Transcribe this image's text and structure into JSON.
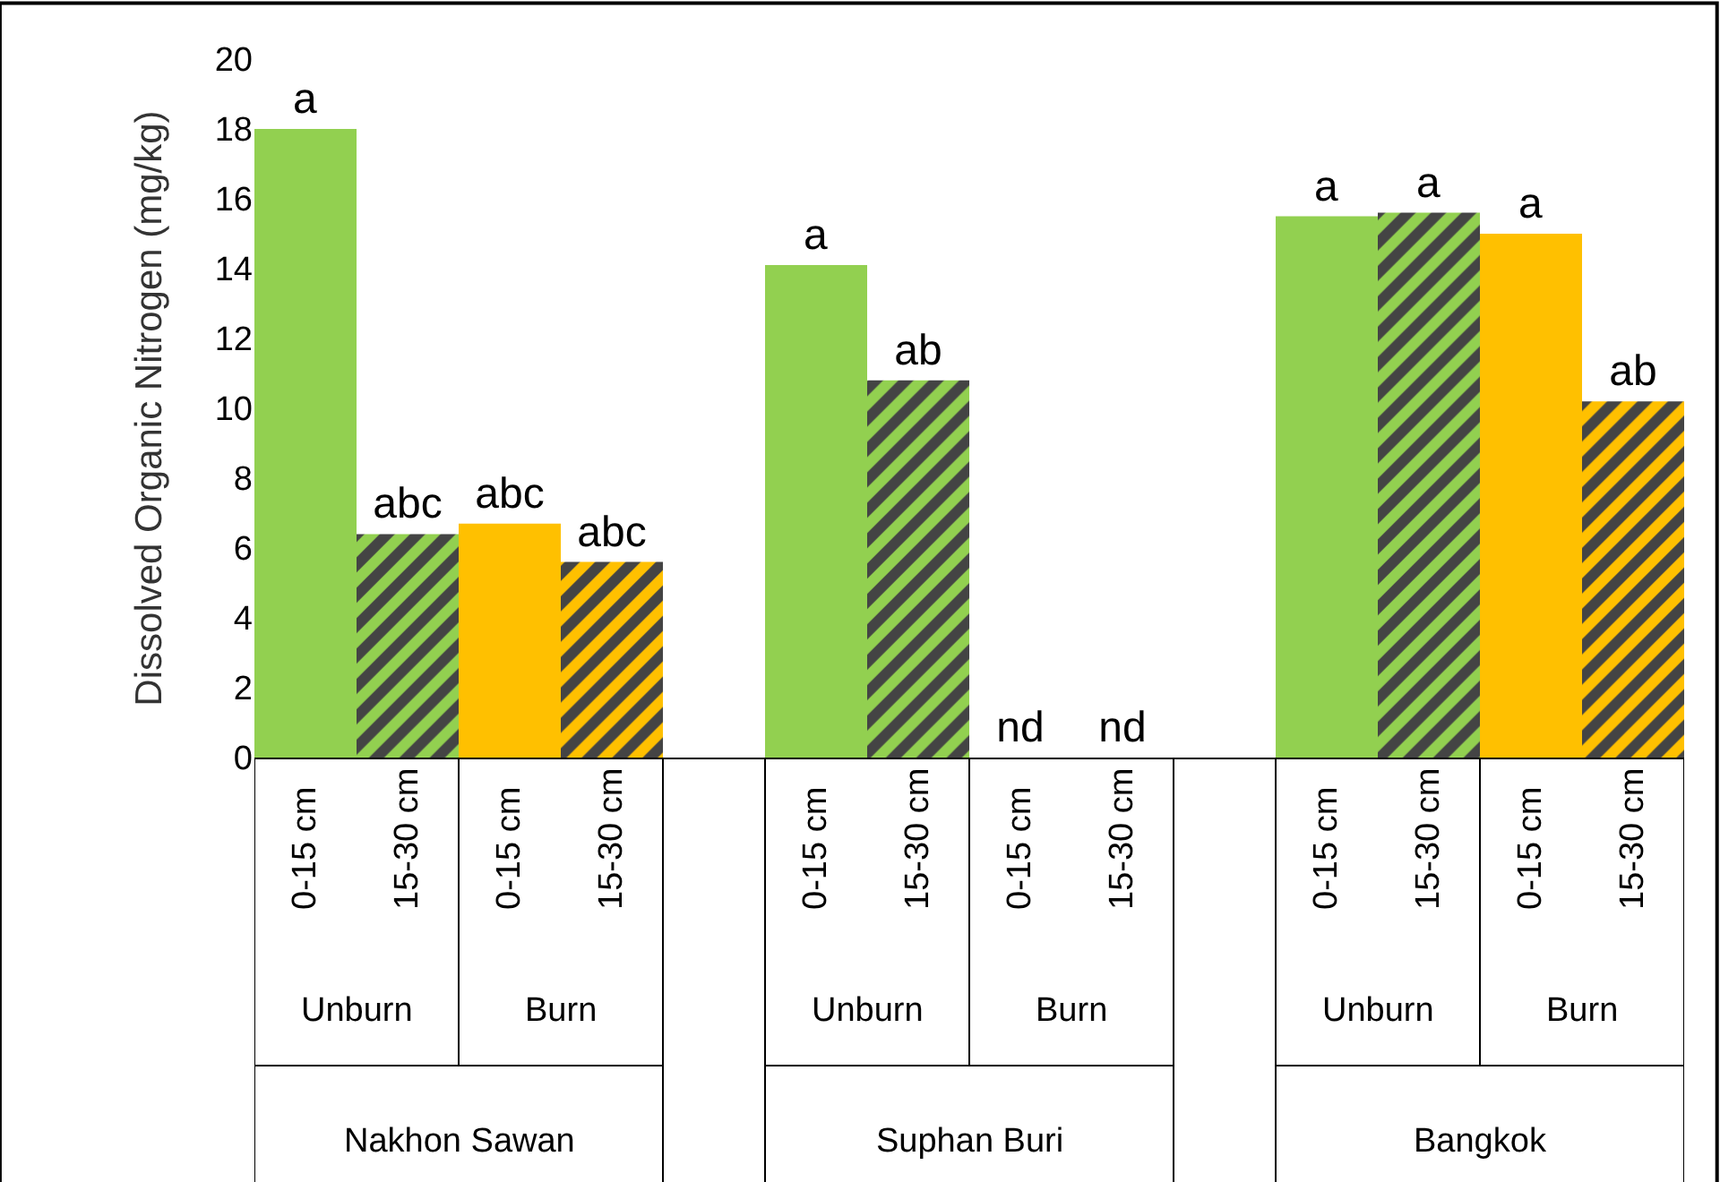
{
  "chart_data": {
    "type": "bar",
    "ylabel": "Dissolved Organic Nitrogen (mg/kg)",
    "categories": [
      "0-15 cm",
      "15-30 cm",
      "0-15 cm",
      "15-30 cm",
      "0-15 cm",
      "15-30 cm",
      "0-15 cm",
      "15-30 cm",
      "0-15 cm",
      "15-30 cm",
      "0-15 cm",
      "15-30 cm"
    ],
    "series": [
      {
        "colors": [
          "#92d050",
          null,
          "#ffc000",
          null,
          "#92d050",
          null,
          "#92d050",
          null,
          "#92d050",
          null,
          "#ffc000",
          null
        ],
        "values": [
          18.0,
          null,
          6.7,
          null,
          14.1,
          null,
          0,
          null,
          15.5,
          null,
          15.0,
          null
        ],
        "value_labels": [
          "a",
          null,
          "abc",
          null,
          "a",
          null,
          "nd",
          null,
          "a",
          null,
          "a",
          null
        ]
      },
      {
        "colors": [
          null,
          "#92d050",
          null,
          "#ffc000",
          null,
          "#92d050",
          null,
          "#ffc000",
          null,
          "#92d050",
          null,
          "#ffc000"
        ],
        "values": [
          null,
          6.4,
          null,
          5.6,
          null,
          10.8,
          null,
          0,
          null,
          15.6,
          null,
          10.2
        ],
        "value_labels": [
          null,
          "abc",
          null,
          "abc",
          null,
          "ab",
          null,
          "nd",
          null,
          "a",
          null,
          "ab"
        ]
      }
    ],
    "annotations": [
      "Unburn",
      "Burn",
      "Unburn",
      "Burn",
      "Unburn",
      "Burn",
      "Nakhon Sawan",
      "Suphan Buri",
      "Bangkok"
    ],
    "ylim": [
      0,
      20
    ],
    "yticks": [
      0,
      2,
      4,
      6,
      8,
      10,
      12,
      14,
      16,
      18,
      20
    ],
    "grid": false,
    "legend": false
  }
}
